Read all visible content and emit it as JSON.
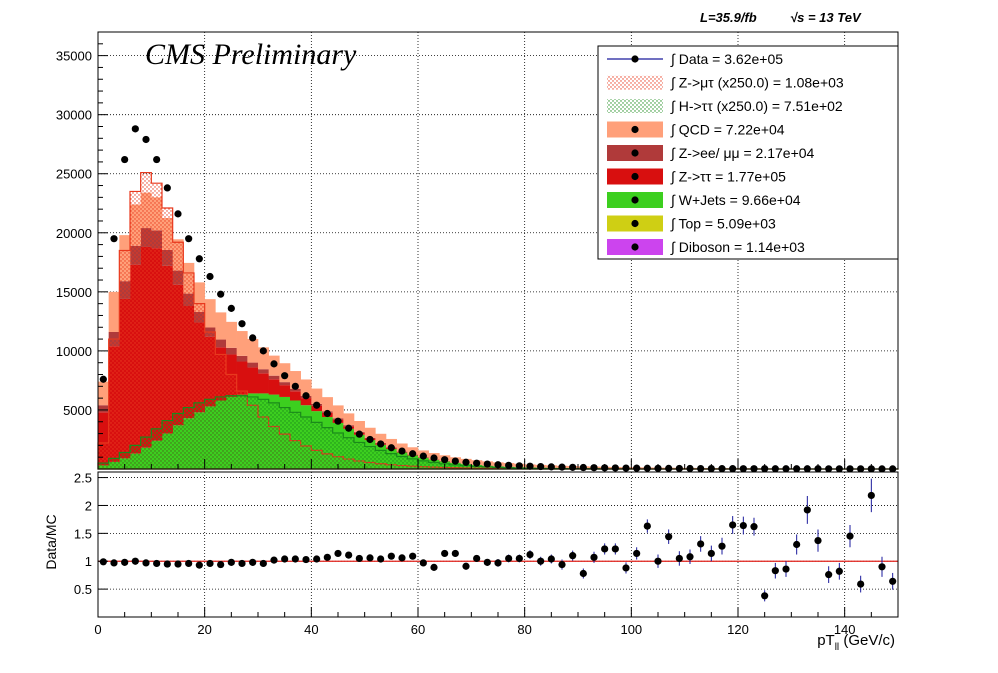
{
  "header": {
    "lumi": "L=35.9/fb",
    "energy": "√s = 13 TeV"
  },
  "watermark": "CMS Preliminary",
  "legend": [
    {
      "label": "∫ Data = 3.62e+05",
      "style": "marker-line",
      "color": "#000000",
      "line_color": "#1a1a9c"
    },
    {
      "label": "∫ Z->μτ (x250.0) = 1.08e+03",
      "style": "hatch",
      "color": "#e8391e"
    },
    {
      "label": "∫ H->ττ (x250.0) = 7.51e+02",
      "style": "hatch",
      "color": "#1a8a1a"
    },
    {
      "label": "∫ QCD = 7.22e+04",
      "style": "fill",
      "color": "#ffa07a"
    },
    {
      "label": "∫ Z->ee/ μμ = 2.17e+04",
      "style": "fill",
      "color": "#b03a3a"
    },
    {
      "label": "∫ Z->ττ = 1.77e+05",
      "style": "fill",
      "color": "#d80f0f"
    },
    {
      "label": "∫ W+Jets = 9.66e+04",
      "style": "fill",
      "color": "#3ccf1f"
    },
    {
      "label": "∫ Top = 5.09e+03",
      "style": "fill",
      "color": "#cfcf14"
    },
    {
      "label": "∫ Diboson = 1.14e+03",
      "style": "fill",
      "color": "#cc44ee"
    }
  ],
  "chart_data": [
    {
      "type": "bar",
      "subtype": "stacked-histogram",
      "xlim": [
        0,
        150
      ],
      "ylim": [
        0,
        37000
      ],
      "y_ticks": [
        5000,
        10000,
        15000,
        20000,
        25000,
        30000,
        35000
      ],
      "grid": true,
      "legend_position": "top-right",
      "bin_width": 2,
      "bin_edges_start": 0,
      "stack_order": [
        "Diboson",
        "Top",
        "W+Jets",
        "Z->ττ",
        "Z->ee/ μμ",
        "QCD"
      ],
      "series": [
        {
          "name": "W+Jets",
          "color": "#3ccf1f",
          "values": [
            300,
            600,
            900,
            1300,
            1800,
            2400,
            3000,
            3700,
            4300,
            4800,
            5300,
            5800,
            6100,
            6300,
            6400,
            6400,
            6300,
            6100,
            5800,
            5400,
            4900,
            4400,
            3900,
            3400,
            2900,
            2450,
            2050,
            1700,
            1400,
            1150,
            950,
            780,
            640,
            520,
            420,
            340,
            280,
            230,
            190,
            150,
            120,
            100,
            85,
            70,
            60,
            50,
            42,
            36,
            30,
            25,
            21,
            18,
            15,
            13,
            11,
            9,
            8,
            7,
            6,
            5,
            4,
            4,
            3,
            3,
            3,
            2,
            2,
            2,
            2,
            1,
            1,
            1,
            1,
            1,
            1
          ]
        },
        {
          "name": "Z->ττ",
          "color": "#d80f0f",
          "values": [
            4500,
            9800,
            13500,
            16000,
            17000,
            16300,
            14200,
            11900,
            9500,
            7600,
            5900,
            4500,
            3600,
            2800,
            2200,
            1700,
            1300,
            1000,
            780,
            600,
            460,
            360,
            280,
            220,
            170,
            130,
            100,
            80,
            62,
            48,
            38,
            30,
            24,
            19,
            15,
            12,
            10,
            8,
            6,
            5,
            4,
            3,
            3,
            2,
            2,
            2,
            1,
            1,
            1,
            1,
            1,
            1,
            1,
            1,
            1,
            0,
            0,
            0,
            0,
            0,
            0,
            0,
            0,
            0,
            0,
            0,
            0,
            0,
            0,
            0,
            0,
            0,
            0,
            0,
            0
          ]
        },
        {
          "name": "Z->ee/ μμ",
          "color": "#b03a3a",
          "values": [
            600,
            1200,
            1500,
            1600,
            1600,
            1500,
            1350,
            1200,
            1050,
            900,
            780,
            660,
            560,
            480,
            410,
            350,
            300,
            255,
            215,
            180,
            150,
            125,
            105,
            88,
            74,
            62,
            52,
            44,
            37,
            31,
            26,
            22,
            18,
            15,
            13,
            11,
            9,
            8,
            7,
            6,
            5,
            4,
            4,
            3,
            3,
            2,
            2,
            2,
            2,
            1,
            1,
            1,
            1,
            1,
            1,
            1,
            1,
            1,
            1,
            1,
            1,
            1,
            1,
            1,
            1,
            1,
            1,
            1,
            1,
            1,
            1,
            1,
            1,
            1,
            1
          ]
        },
        {
          "name": "QCD",
          "color": "#ffa07a",
          "values": [
            2000,
            3400,
            3900,
            3500,
            3000,
            2800,
            2700,
            2650,
            2600,
            2500,
            2400,
            2300,
            2200,
            2100,
            2000,
            1850,
            1700,
            1600,
            1500,
            1400,
            1300,
            1200,
            1100,
            1000,
            920,
            850,
            780,
            720,
            660,
            610,
            560,
            520,
            480,
            440,
            410,
            380,
            350,
            320,
            300,
            280,
            260,
            240,
            220,
            200,
            190,
            175,
            160,
            150,
            140,
            130,
            120,
            110,
            100,
            95,
            90,
            85,
            80,
            75,
            70,
            65,
            60,
            55,
            52,
            50,
            48,
            45,
            42,
            40,
            38,
            36,
            34,
            32,
            30,
            28,
            26
          ]
        }
      ],
      "data_points": {
        "name": "Data",
        "values": [
          7600,
          19500,
          26200,
          28800,
          27900,
          26200,
          23800,
          21600,
          19500,
          17800,
          16300,
          14800,
          13600,
          12300,
          11100,
          10000,
          8900,
          7900,
          7000,
          6200,
          5400,
          4700,
          4050,
          3450,
          2950,
          2500,
          2120,
          1800,
          1520,
          1290,
          1090,
          930,
          790,
          670,
          570,
          490,
          420,
          360,
          310,
          270,
          235,
          205,
          180,
          158,
          140,
          124,
          110,
          98,
          88,
          79,
          71,
          64,
          58,
          52,
          47,
          43,
          39,
          36,
          33,
          30,
          28,
          26,
          24,
          22,
          21,
          20,
          19,
          18,
          17,
          16,
          15,
          14,
          13,
          12,
          11
        ]
      },
      "signal_overlays": [
        {
          "name": "Z->μτ (x250.0)",
          "color": "#e8391e",
          "values": [
            2200,
            11000,
            18500,
            23500,
            25100,
            24200,
            22100,
            19200,
            16600,
            14000,
            11600,
            9700,
            8000,
            6600,
            5400,
            4400,
            3600,
            2950,
            2400,
            1950,
            1580,
            1280,
            1040,
            840,
            680,
            550,
            445,
            360,
            292,
            237,
            192,
            156,
            127,
            103,
            84,
            68,
            55,
            45,
            37,
            30,
            25,
            20,
            16,
            13,
            11,
            9,
            7,
            6,
            5,
            4,
            3,
            3,
            2,
            2,
            2,
            1,
            1,
            1,
            1,
            1,
            1,
            1,
            1,
            1,
            1,
            1,
            1,
            1,
            1,
            1,
            1,
            1,
            1,
            1,
            1
          ]
        },
        {
          "name": "H->ττ (x250.0)",
          "color": "#1a8a1a",
          "values": [
            500,
            900,
            1400,
            2000,
            2700,
            3400,
            4100,
            4700,
            5200,
            5600,
            5900,
            6100,
            6200,
            6200,
            6100,
            5900,
            5600,
            5200,
            4800,
            4400,
            3950,
            3500,
            3050,
            2650,
            2250,
            1900,
            1580,
            1300,
            1060,
            860,
            690,
            550,
            440,
            350,
            280,
            220,
            175,
            140,
            110,
            88,
            70,
            56,
            44,
            35,
            28,
            22,
            18,
            14,
            11,
            9,
            7,
            6,
            5,
            4,
            3,
            3,
            2,
            2,
            2,
            1,
            1,
            1,
            1,
            1,
            1,
            1,
            1,
            1,
            1,
            1,
            1,
            1,
            1,
            1,
            1
          ]
        }
      ]
    },
    {
      "type": "scatter",
      "subtype": "ratio",
      "ylabel": "Data/MC",
      "xlabel": "pT_ll (GeV/c)",
      "xlim": [
        0,
        150
      ],
      "ylim": [
        0,
        2.6
      ],
      "y_ticks": [
        0.5,
        1,
        1.5,
        2,
        2.5
      ],
      "x_ticks": [
        0,
        20,
        40,
        60,
        80,
        100,
        120,
        140
      ],
      "grid": true,
      "reference_line": 1,
      "reference_color": "#e0201a",
      "x": [
        1,
        3,
        5,
        7,
        9,
        11,
        13,
        15,
        17,
        19,
        21,
        23,
        25,
        27,
        29,
        31,
        33,
        35,
        37,
        39,
        41,
        43,
        45,
        47,
        49,
        51,
        53,
        55,
        57,
        59,
        61,
        63,
        65,
        67,
        69,
        71,
        73,
        75,
        77,
        79,
        81,
        83,
        85,
        87,
        89,
        91,
        93,
        95,
        97,
        99,
        101,
        103,
        105,
        107,
        109,
        111,
        113,
        115,
        117,
        119,
        121,
        123,
        125,
        127,
        129,
        131,
        133,
        135,
        137,
        139,
        141,
        143,
        145,
        147,
        149
      ],
      "values": [
        0.99,
        0.97,
        0.98,
        1.0,
        0.97,
        0.96,
        0.95,
        0.95,
        0.96,
        0.93,
        0.96,
        0.94,
        0.98,
        0.96,
        0.98,
        0.96,
        1.02,
        1.04,
        1.04,
        1.03,
        1.04,
        1.07,
        1.14,
        1.11,
        1.05,
        1.06,
        1.04,
        1.09,
        1.06,
        1.09,
        0.97,
        0.89,
        1.14,
        1.14,
        0.91,
        1.05,
        0.98,
        0.97,
        1.05,
        1.05,
        1.12,
        1.0,
        1.04,
        0.94,
        1.1,
        0.78,
        1.07,
        1.22,
        1.22,
        0.88,
        1.14,
        1.63,
        1.0,
        1.44,
        1.05,
        1.08,
        1.31,
        1.14,
        1.27,
        1.65,
        1.64,
        1.62,
        0.38,
        0.83,
        0.86,
        1.3,
        1.92,
        1.37,
        0.76,
        0.82,
        1.45,
        0.59,
        2.18,
        0.9,
        0.64
      ],
      "errors": [
        0.03,
        0.02,
        0.02,
        0.02,
        0.02,
        0.02,
        0.02,
        0.02,
        0.02,
        0.02,
        0.02,
        0.02,
        0.02,
        0.02,
        0.02,
        0.02,
        0.02,
        0.03,
        0.03,
        0.03,
        0.03,
        0.03,
        0.03,
        0.03,
        0.04,
        0.04,
        0.04,
        0.04,
        0.04,
        0.05,
        0.05,
        0.05,
        0.05,
        0.06,
        0.06,
        0.06,
        0.06,
        0.07,
        0.07,
        0.07,
        0.08,
        0.08,
        0.08,
        0.09,
        0.09,
        0.09,
        0.1,
        0.1,
        0.1,
        0.1,
        0.11,
        0.12,
        0.12,
        0.13,
        0.13,
        0.13,
        0.14,
        0.14,
        0.15,
        0.16,
        0.16,
        0.16,
        0.1,
        0.14,
        0.14,
        0.18,
        0.25,
        0.2,
        0.15,
        0.15,
        0.2,
        0.15,
        0.3,
        0.18,
        0.15
      ]
    }
  ]
}
